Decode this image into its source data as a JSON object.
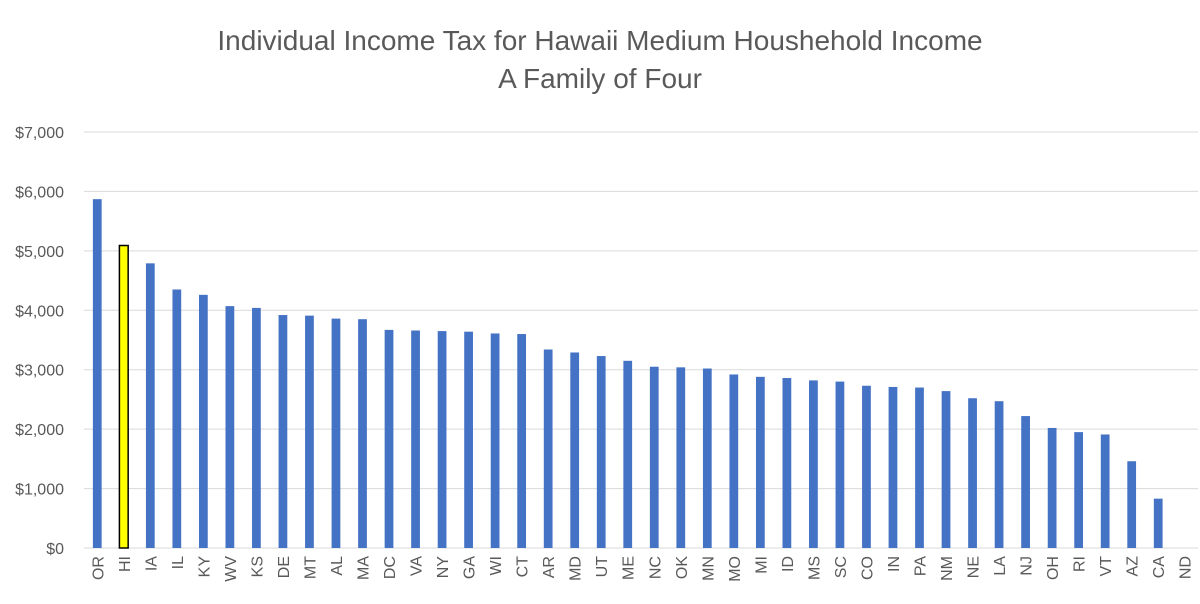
{
  "chart_data": {
    "type": "bar",
    "title": [
      "Individual Income Tax for Hawaii Medium Houshehold Income",
      "A Family of Four"
    ],
    "xlabel": "",
    "ylabel": "",
    "ylim": [
      0,
      7000
    ],
    "yticks": [
      0,
      1000,
      2000,
      3000,
      4000,
      5000,
      6000,
      7000
    ],
    "ytick_labels": [
      "$0",
      "$1,000",
      "$2,000",
      "$3,000",
      "$4,000",
      "$5,000",
      "$6,000",
      "$7,000"
    ],
    "grid": true,
    "legend": "none",
    "colors": {
      "bar": "#4472C4",
      "highlight": "#FFFF00",
      "highlight_edge": "#000000",
      "grid": "#D9D9D9",
      "text": "#595959"
    },
    "highlight_category": "HI",
    "categories": [
      "OR",
      "HI",
      "IA",
      "IL",
      "KY",
      "WV",
      "KS",
      "DE",
      "MT",
      "AL",
      "MA",
      "DC",
      "VA",
      "NY",
      "GA",
      "WI",
      "CT",
      "AR",
      "MD",
      "UT",
      "ME",
      "NC",
      "OK",
      "MN",
      "MO",
      "MI",
      "ID",
      "MS",
      "SC",
      "CO",
      "IN",
      "PA",
      "NM",
      "NE",
      "LA",
      "NJ",
      "OH",
      "RI",
      "VT",
      "AZ",
      "CA",
      "ND"
    ],
    "values": [
      5870,
      5090,
      4790,
      4350,
      4260,
      4070,
      4040,
      3920,
      3910,
      3860,
      3850,
      3670,
      3660,
      3650,
      3640,
      3610,
      3600,
      3340,
      3290,
      3230,
      3150,
      3050,
      3040,
      3020,
      2920,
      2880,
      2860,
      2820,
      2800,
      2730,
      2710,
      2700,
      2640,
      2520,
      2470,
      2220,
      2020,
      1950,
      1910,
      1460,
      830,
      0
    ]
  }
}
